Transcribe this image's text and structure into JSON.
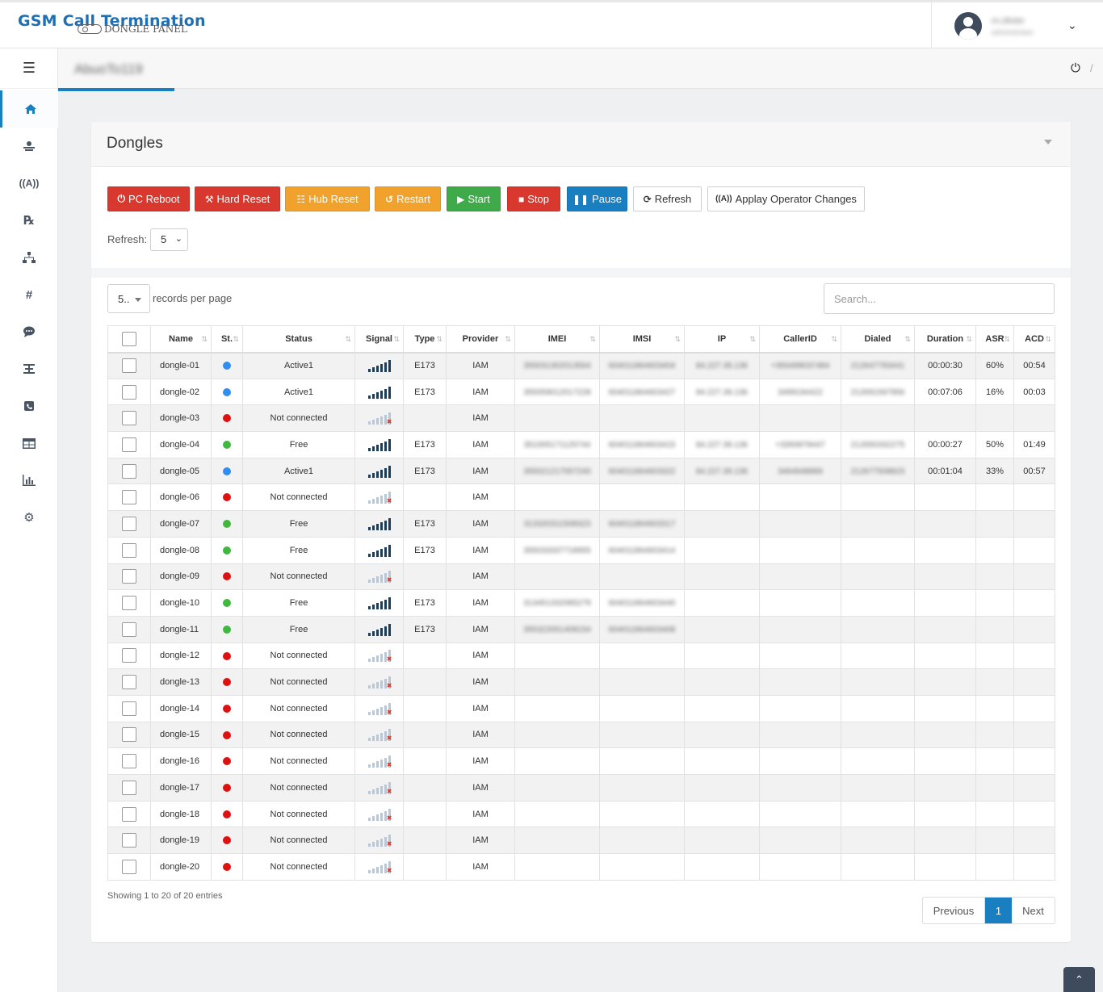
{
  "app": {
    "title": "GSM Call Termination",
    "subtitle": "DONGLE PANEL",
    "user_name": "m.olivier",
    "user_role": "administrator"
  },
  "breadcrumb": {
    "title": "AbuoTo119"
  },
  "card": {
    "title": "Dongles"
  },
  "actions": {
    "pc_reboot": "PC Reboot",
    "hard_reset": "Hard Reset",
    "hub_reset": "Hub Reset",
    "restart": "Restart",
    "start": "Start",
    "stop": "Stop",
    "pause": "Pause",
    "refresh": "Refresh",
    "apply_operator": "Applay Operator Changes"
  },
  "refresh_control": {
    "label": "Refresh:",
    "value": "5"
  },
  "table_controls": {
    "per_page_value": "5..",
    "per_page_label": "records per page",
    "search_placeholder": "Search..."
  },
  "table": {
    "headers": [
      "Name",
      "St.",
      "Status",
      "Signal",
      "Type",
      "Provider",
      "IMEI",
      "IMSI",
      "IP",
      "CallerID",
      "Dialed",
      "Duration",
      "ASR",
      "ACD"
    ],
    "rows": [
      {
        "name": "dongle-01",
        "st_color": "#2f8ef0",
        "status": "Active1",
        "signal": 5,
        "type": "E173",
        "provider": "IAM",
        "imei": "355031302013564",
        "imsi": "604011864603404",
        "ip": "84.227.39.136",
        "callerid": "+393499037484",
        "dialed": "212647793441",
        "duration": "00:00:30",
        "asr": "60%",
        "acd": "00:54"
      },
      {
        "name": "dongle-02",
        "st_color": "#2f8ef0",
        "status": "Active1",
        "signal": 5,
        "type": "E173",
        "provider": "IAM",
        "imei": "355059012017228",
        "imsi": "604011864603427",
        "ip": "84.227.39.136",
        "callerid": "3499194422",
        "dialed": "212691597956",
        "duration": "00:07:06",
        "asr": "16%",
        "acd": "00:03"
      },
      {
        "name": "dongle-03",
        "st_color": "#e01010",
        "status": "Not connected",
        "signal": 0,
        "type": "",
        "provider": "IAM",
        "imei": "",
        "imsi": "",
        "ip": "",
        "callerid": "",
        "dialed": "",
        "duration": "",
        "asr": "",
        "acd": ""
      },
      {
        "name": "dongle-04",
        "st_color": "#3fb83f",
        "status": "Free",
        "signal": 5,
        "type": "E173",
        "provider": "IAM",
        "imei": "351005171125744",
        "imsi": "604011864603415",
        "ip": "84.227.39.136",
        "callerid": "+3393978447",
        "dialed": "212650332275",
        "duration": "00:00:27",
        "asr": "50%",
        "acd": "01:49"
      },
      {
        "name": "dongle-05",
        "st_color": "#2f8ef0",
        "status": "Active1",
        "signal": 5,
        "type": "E173",
        "provider": "IAM",
        "imei": "355021217057240",
        "imsi": "604011864603322",
        "ip": "84.227.39.136",
        "callerid": "3464948899",
        "dialed": "212677508823",
        "duration": "00:01:04",
        "asr": "33%",
        "acd": "00:57"
      },
      {
        "name": "dongle-06",
        "st_color": "#e01010",
        "status": "Not connected",
        "signal": 0,
        "type": "",
        "provider": "IAM",
        "imei": "",
        "imsi": "",
        "ip": "",
        "callerid": "",
        "dialed": "",
        "duration": "",
        "asr": "",
        "acd": ""
      },
      {
        "name": "dongle-07",
        "st_color": "#3fb83f",
        "status": "Free",
        "signal": 5,
        "type": "E173",
        "provider": "IAM",
        "imei": "313320311508323",
        "imsi": "604011864603317",
        "ip": "",
        "callerid": "",
        "dialed": "",
        "duration": "",
        "asr": "",
        "acd": ""
      },
      {
        "name": "dongle-08",
        "st_color": "#3fb83f",
        "status": "Free",
        "signal": 5,
        "type": "E173",
        "provider": "IAM",
        "imei": "355033337718955",
        "imsi": "604011864603414",
        "ip": "",
        "callerid": "",
        "dialed": "",
        "duration": "",
        "asr": "",
        "acd": ""
      },
      {
        "name": "dongle-09",
        "st_color": "#e01010",
        "status": "Not connected",
        "signal": 0,
        "type": "",
        "provider": "IAM",
        "imei": "",
        "imsi": "",
        "ip": "",
        "callerid": "",
        "dialed": "",
        "duration": "",
        "asr": "",
        "acd": ""
      },
      {
        "name": "dongle-10",
        "st_color": "#3fb83f",
        "status": "Free",
        "signal": 5,
        "type": "E173",
        "provider": "IAM",
        "imei": "313451332085279",
        "imsi": "604011864603440",
        "ip": "",
        "callerid": "",
        "dialed": "",
        "duration": "",
        "asr": "",
        "acd": ""
      },
      {
        "name": "dongle-11",
        "st_color": "#3fb83f",
        "status": "Free",
        "signal": 5,
        "type": "E173",
        "provider": "IAM",
        "imei": "355322051408154",
        "imsi": "604011864603408",
        "ip": "",
        "callerid": "",
        "dialed": "",
        "duration": "",
        "asr": "",
        "acd": ""
      },
      {
        "name": "dongle-12",
        "st_color": "#e01010",
        "status": "Not connected",
        "signal": 0,
        "type": "",
        "provider": "IAM",
        "imei": "",
        "imsi": "",
        "ip": "",
        "callerid": "",
        "dialed": "",
        "duration": "",
        "asr": "",
        "acd": ""
      },
      {
        "name": "dongle-13",
        "st_color": "#e01010",
        "status": "Not connected",
        "signal": 0,
        "type": "",
        "provider": "IAM",
        "imei": "",
        "imsi": "",
        "ip": "",
        "callerid": "",
        "dialed": "",
        "duration": "",
        "asr": "",
        "acd": ""
      },
      {
        "name": "dongle-14",
        "st_color": "#e01010",
        "status": "Not connected",
        "signal": 0,
        "type": "",
        "provider": "IAM",
        "imei": "",
        "imsi": "",
        "ip": "",
        "callerid": "",
        "dialed": "",
        "duration": "",
        "asr": "",
        "acd": ""
      },
      {
        "name": "dongle-15",
        "st_color": "#e01010",
        "status": "Not connected",
        "signal": 0,
        "type": "",
        "provider": "IAM",
        "imei": "",
        "imsi": "",
        "ip": "",
        "callerid": "",
        "dialed": "",
        "duration": "",
        "asr": "",
        "acd": ""
      },
      {
        "name": "dongle-16",
        "st_color": "#e01010",
        "status": "Not connected",
        "signal": 0,
        "type": "",
        "provider": "IAM",
        "imei": "",
        "imsi": "",
        "ip": "",
        "callerid": "",
        "dialed": "",
        "duration": "",
        "asr": "",
        "acd": ""
      },
      {
        "name": "dongle-17",
        "st_color": "#e01010",
        "status": "Not connected",
        "signal": 0,
        "type": "",
        "provider": "IAM",
        "imei": "",
        "imsi": "",
        "ip": "",
        "callerid": "",
        "dialed": "",
        "duration": "",
        "asr": "",
        "acd": ""
      },
      {
        "name": "dongle-18",
        "st_color": "#e01010",
        "status": "Not connected",
        "signal": 0,
        "type": "",
        "provider": "IAM",
        "imei": "",
        "imsi": "",
        "ip": "",
        "callerid": "",
        "dialed": "",
        "duration": "",
        "asr": "",
        "acd": ""
      },
      {
        "name": "dongle-19",
        "st_color": "#e01010",
        "status": "Not connected",
        "signal": 0,
        "type": "",
        "provider": "IAM",
        "imei": "",
        "imsi": "",
        "ip": "",
        "callerid": "",
        "dialed": "",
        "duration": "",
        "asr": "",
        "acd": ""
      },
      {
        "name": "dongle-20",
        "st_color": "#e01010",
        "status": "Not connected",
        "signal": 0,
        "type": "",
        "provider": "IAM",
        "imei": "",
        "imsi": "",
        "ip": "",
        "callerid": "",
        "dialed": "",
        "duration": "",
        "asr": "",
        "acd": ""
      }
    ]
  },
  "footer": {
    "showing": "Showing 1 to 20 of 20 entries"
  },
  "pagination": {
    "previous": "Previous",
    "current": "1",
    "next": "Next"
  },
  "icons": {
    "sidebar": [
      "home-icon",
      "operator-icon",
      "antenna-icon",
      "prescription-icon",
      "network-icon",
      "hash-icon",
      "sms-icon",
      "routing-icon",
      "phone-book-icon",
      "table-icon",
      "bar-chart-icon",
      "settings-icon"
    ]
  }
}
